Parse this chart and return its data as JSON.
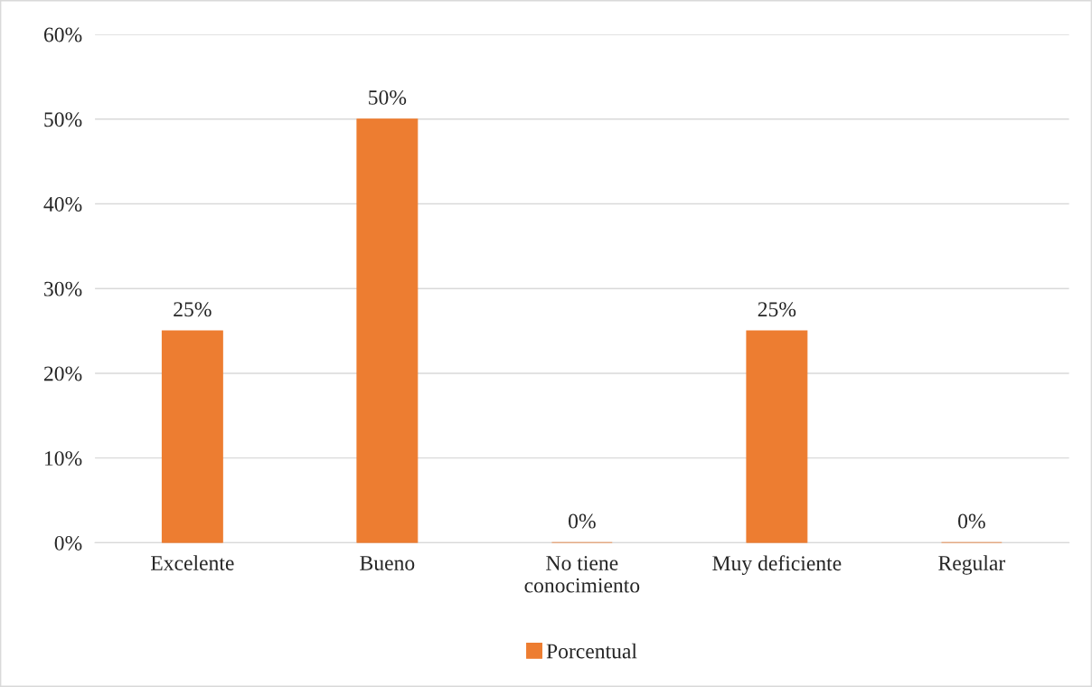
{
  "chart_data": {
    "type": "bar",
    "categories": [
      "Excelente",
      "Bueno",
      "No tiene conocimiento",
      "Muy deficiente",
      "Regular"
    ],
    "series": [
      {
        "name": "Porcentual",
        "color": "#ed7d31",
        "values": [
          25,
          50,
          0,
          25,
          0
        ],
        "value_labels": [
          "25%",
          "50%",
          "0%",
          "25%",
          "0%"
        ]
      }
    ],
    "ylim": [
      0,
      60
    ],
    "yticks": [
      {
        "value": 0,
        "label": "0%"
      },
      {
        "value": 10,
        "label": "10%"
      },
      {
        "value": 20,
        "label": "20%"
      },
      {
        "value": 30,
        "label": "30%"
      },
      {
        "value": 40,
        "label": "40%"
      },
      {
        "value": 50,
        "label": "50%"
      },
      {
        "value": 60,
        "label": "60%"
      }
    ],
    "grid": "y",
    "legend": "bottom"
  }
}
